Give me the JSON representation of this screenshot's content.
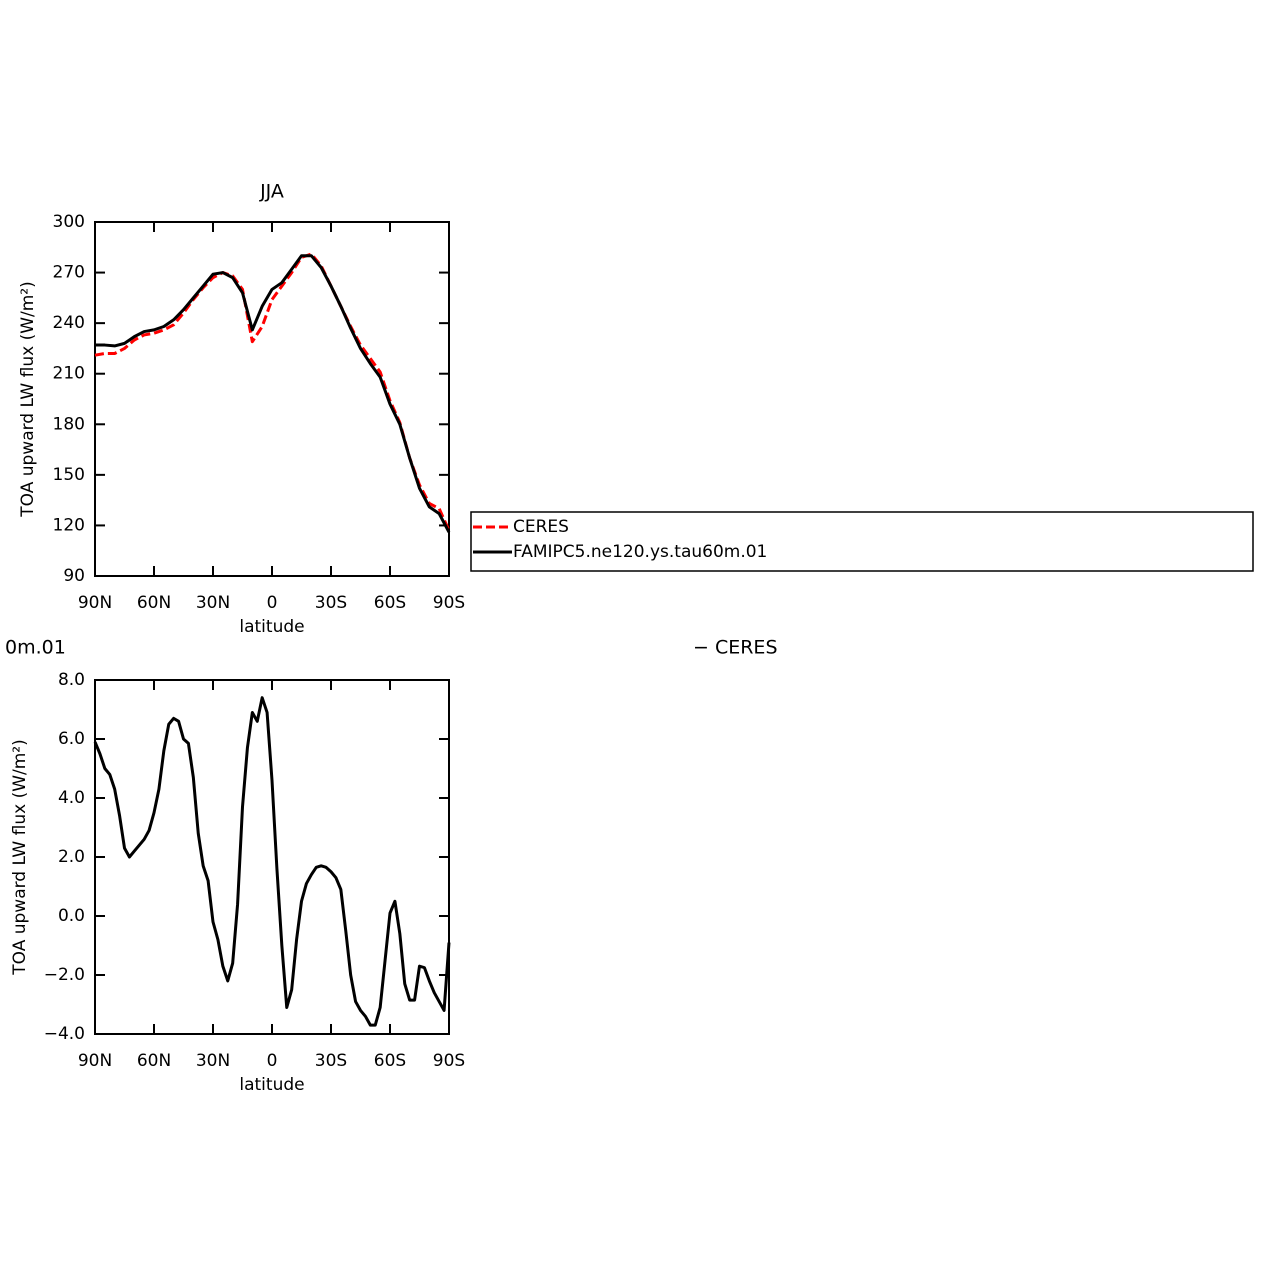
{
  "chart_data": [
    {
      "type": "line",
      "title": "JJA",
      "x": [
        90,
        85,
        80,
        75,
        70,
        65,
        60,
        55,
        50,
        45,
        40,
        35,
        30,
        25,
        20,
        15,
        10,
        5,
        0,
        -5,
        -10,
        -15,
        -20,
        -25,
        -30,
        -35,
        -40,
        -45,
        -50,
        -55,
        -60,
        -65,
        -70,
        -75,
        -80,
        -85,
        -90
      ],
      "series": [
        {
          "name": "CERES",
          "color": "#ff0000",
          "dash": true,
          "values": [
            221,
            222,
            222,
            225,
            230,
            233,
            234,
            236,
            239,
            246,
            254,
            261,
            267,
            270,
            268,
            260,
            229,
            238,
            254,
            262,
            270,
            279,
            281,
            274,
            262,
            250,
            238,
            227,
            219,
            211,
            194,
            181,
            160,
            144,
            133,
            130,
            117
          ]
        },
        {
          "name": "FAMIPC5.ne120.ys.tau60m.01",
          "color": "#000000",
          "dash": false,
          "values": [
            227,
            227,
            226.5,
            228,
            232,
            235,
            236,
            238,
            242,
            248,
            255,
            262,
            269,
            270,
            267,
            258,
            236,
            250,
            260,
            264,
            272,
            280,
            280,
            273,
            262,
            250,
            237,
            225,
            216,
            208,
            192,
            180,
            160,
            142,
            131,
            127,
            116
          ]
        }
      ],
      "xlim": [
        90,
        -90
      ],
      "xticks": [
        {
          "value": 90,
          "label": "90N"
        },
        {
          "value": 60,
          "label": "60N"
        },
        {
          "value": 30,
          "label": "30N"
        },
        0,
        {
          "value": -30,
          "label": "30S"
        },
        {
          "value": -60,
          "label": "60S"
        },
        {
          "value": -90,
          "label": "90S"
        }
      ],
      "ylim": [
        90,
        300
      ],
      "yticks": [
        90,
        120,
        150,
        180,
        210,
        240,
        270,
        300
      ],
      "xlabel": "latitude",
      "ylabel": "TOA upward LW flux (W/m²)",
      "legend": "right"
    },
    {
      "type": "line",
      "annotations": [
        "0m.01",
        "− CERES"
      ],
      "x": [
        90,
        87.5,
        85,
        82.5,
        80,
        77.5,
        75,
        72.5,
        70,
        67.5,
        65,
        62.5,
        60,
        57.5,
        55,
        52.5,
        50,
        47.5,
        45,
        42.5,
        40,
        37.5,
        35,
        32.5,
        30,
        27.5,
        25,
        22.5,
        20,
        17.5,
        15,
        12.5,
        10,
        7.5,
        5,
        2.5,
        0,
        -2.5,
        -5,
        -7.5,
        -10,
        -12.5,
        -15,
        -17.5,
        -20,
        -22.5,
        -25,
        -27.5,
        -30,
        -32.5,
        -35,
        -37.5,
        -40,
        -42.5,
        -45,
        -47.5,
        -50,
        -52.5,
        -55,
        -57.5,
        -60,
        -62.5,
        -65,
        -67.5,
        -70,
        -72.5,
        -75,
        -77.5,
        -80,
        -82.5,
        -85,
        -87.5,
        -90
      ],
      "series": [
        {
          "color": "#000000",
          "values": [
            5.9,
            5.5,
            5.0,
            4.8,
            4.3,
            3.4,
            2.3,
            2.0,
            2.2,
            2.4,
            2.6,
            2.9,
            3.5,
            4.3,
            5.6,
            6.5,
            6.7,
            6.6,
            6.0,
            5.85,
            4.7,
            2.8,
            1.7,
            1.2,
            -0.2,
            -0.8,
            -1.7,
            -2.2,
            -1.6,
            0.4,
            3.7,
            5.7,
            6.9,
            6.6,
            7.4,
            6.9,
            4.6,
            1.6,
            -1.0,
            -3.1,
            -2.5,
            -0.8,
            0.5,
            1.1,
            1.4,
            1.65,
            1.7,
            1.65,
            1.5,
            1.3,
            0.9,
            -0.5,
            -2.0,
            -2.9,
            -3.2,
            -3.4,
            -3.7,
            -3.7,
            -3.1,
            -1.5,
            0.1,
            0.5,
            -0.6,
            -2.3,
            -2.85,
            -2.85,
            -1.7,
            -1.75,
            -2.2,
            -2.6,
            -2.9,
            -3.2,
            -0.9
          ]
        }
      ],
      "xlim": [
        90,
        -90
      ],
      "xticks": [
        {
          "value": 90,
          "label": "90N"
        },
        {
          "value": 60,
          "label": "60N"
        },
        {
          "value": 30,
          "label": "30N"
        },
        0,
        {
          "value": -30,
          "label": "30S"
        },
        {
          "value": -60,
          "label": "60S"
        },
        {
          "value": -90,
          "label": "90S"
        }
      ],
      "ylim": [
        -4,
        8
      ],
      "yticks": [
        {
          "value": 8,
          "label": "8.0"
        },
        {
          "value": 6,
          "label": "6.0"
        },
        {
          "value": 4,
          "label": "4.0"
        },
        {
          "value": 2,
          "label": "2.0"
        },
        {
          "value": 0,
          "label": "0.0"
        },
        {
          "value": -2,
          "label": "−2.0"
        },
        {
          "value": -4,
          "label": "−4.0"
        }
      ],
      "xlabel": "latitude",
      "ylabel": "TOA upward LW flux (W/m²)"
    }
  ]
}
